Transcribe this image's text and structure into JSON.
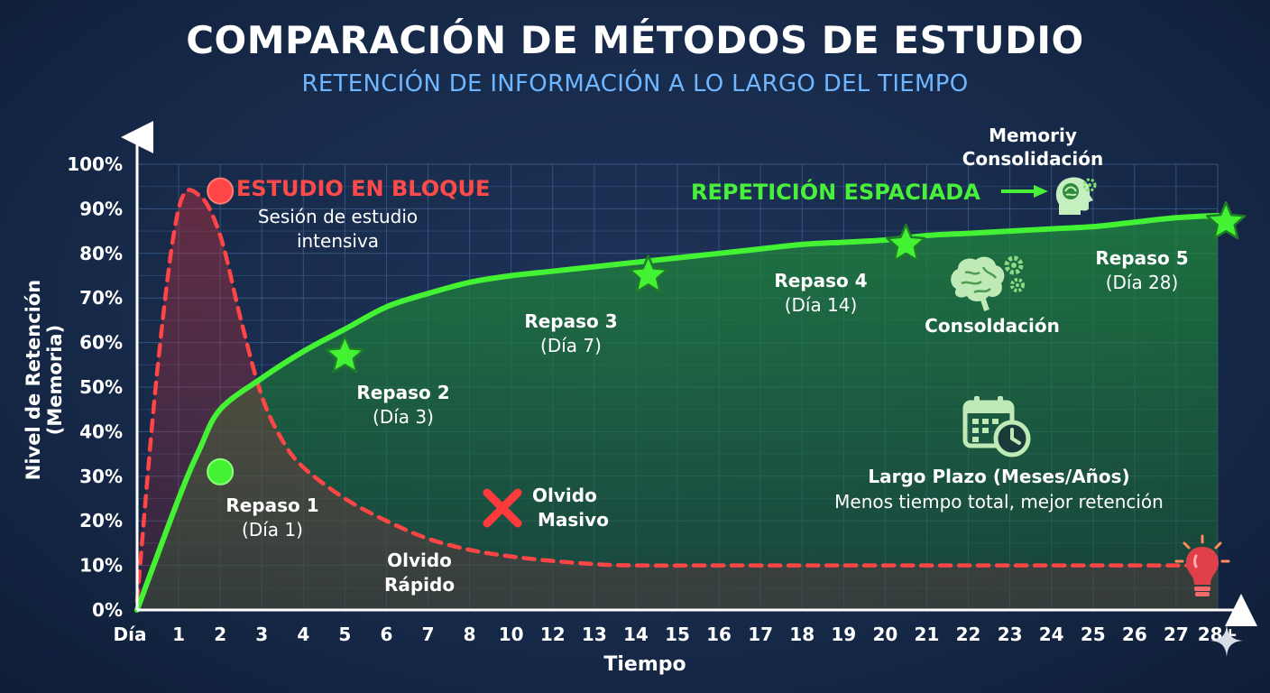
{
  "title": "COMPARACIÓN DE MÉTODOS DE ESTUDIO",
  "subtitle": "RETENCIÓN DE INFORMACIÓN A LO LARGO DEL TIEMPO",
  "chart_data": {
    "type": "line",
    "xlabel": "Tiempo",
    "ylabel": "Nivel de Retención (Memoria)",
    "x_ticks": [
      "Día",
      "1",
      "2",
      "3",
      "4",
      "5",
      "6",
      "7",
      "8",
      "10",
      "12",
      "13",
      "14",
      "15",
      "16",
      "17",
      "18",
      "19",
      "20",
      "21",
      "22",
      "23",
      "24",
      "25",
      "26",
      "27",
      "28+"
    ],
    "y_ticks": [
      "0%",
      "10%",
      "20%",
      "30%",
      "40%",
      "50%",
      "60%",
      "70%",
      "80%",
      "90%",
      "100%"
    ],
    "ylim": [
      0,
      100
    ],
    "grid": true,
    "colors": {
      "bloque": "#ff4545",
      "espaciada": "#44f234"
    },
    "series": [
      {
        "name": "ESTUDIO EN BLOQUE",
        "style": "dashed",
        "points": [
          [
            0,
            2
          ],
          [
            0.5,
            55
          ],
          [
            1,
            90
          ],
          [
            1.5,
            93
          ],
          [
            2,
            84
          ],
          [
            2.5,
            65
          ],
          [
            3,
            48
          ],
          [
            3.5,
            38
          ],
          [
            4,
            32
          ],
          [
            5,
            25
          ],
          [
            6,
            20
          ],
          [
            7,
            16
          ],
          [
            8,
            13.5
          ],
          [
            9,
            12
          ],
          [
            10,
            11
          ],
          [
            11,
            10.3
          ],
          [
            12,
            10
          ],
          [
            15,
            10
          ],
          [
            20,
            10
          ],
          [
            26,
            10
          ]
        ]
      },
      {
        "name": "REPETICIÓN ESPACIADA",
        "style": "solid",
        "points": [
          [
            0,
            0
          ],
          [
            1,
            25
          ],
          [
            1.5,
            36
          ],
          [
            2,
            45
          ],
          [
            3,
            52
          ],
          [
            4,
            58
          ],
          [
            5,
            63
          ],
          [
            6,
            68
          ],
          [
            7,
            71
          ],
          [
            8,
            73.5
          ],
          [
            9,
            75
          ],
          [
            10,
            76
          ],
          [
            11,
            77
          ],
          [
            12,
            78
          ],
          [
            13,
            79
          ],
          [
            14,
            80
          ],
          [
            15,
            81
          ],
          [
            16,
            82
          ],
          [
            17,
            82.5
          ],
          [
            18,
            83
          ],
          [
            19,
            84
          ],
          [
            20,
            84.5
          ],
          [
            21,
            85
          ],
          [
            22,
            85.5
          ],
          [
            23,
            86
          ],
          [
            24,
            87
          ],
          [
            25,
            88
          ],
          [
            26,
            88.5
          ]
        ]
      }
    ],
    "markers": [
      {
        "series": "ESTUDIO EN BLOQUE",
        "x": 2,
        "y": 94,
        "shape": "circle"
      },
      {
        "series": "REPETICIÓN ESPACIADA",
        "x": 2,
        "y": 31,
        "shape": "circle",
        "label": "Repaso 1",
        "sublabel": "(Día 1)"
      },
      {
        "series": "REPETICIÓN ESPACIADA",
        "x": 5,
        "y": 57,
        "shape": "star",
        "label": "Repaso 2",
        "sublabel": "(Día 3)"
      },
      {
        "series": "REPETICIÓN ESPACIADA",
        "x": 12.3,
        "y": 75,
        "shape": "star",
        "label": "Repaso 3",
        "sublabel": "(Día 7)"
      },
      {
        "series": "REPETICIÓN ESPACIADA",
        "x": 18.5,
        "y": 82,
        "shape": "star",
        "label": "Repaso 4",
        "sublabel": "(Día 14)"
      },
      {
        "series": "REPETICIÓN ESPACIADA",
        "x": 26.2,
        "y": 87,
        "shape": "star",
        "label": "Repaso 5",
        "sublabel": "(Día 28)"
      }
    ]
  },
  "annotations": {
    "bloque_title": "ESTUDIO EN BLOQUE",
    "bloque_desc_1": "Sesión de estudio",
    "bloque_desc_2": "intensiva",
    "espaciada_title": "REPETICIÓN ESPACIADA",
    "memory_1": "Memoriy",
    "memory_2": "Consolidación",
    "consolidacion": "Consoldación",
    "largo_plazo": "Largo Plazo (Meses/Años)",
    "largo_desc": "Menos tiempo total, mejor retención",
    "olvido_masivo_1": "Olvido",
    "olvido_masivo_2": "Masivo",
    "olvido_rapido_1": "Olvido",
    "olvido_rapido_2": "Rápido"
  },
  "icons": [
    "x-icon",
    "brain-gears-icon",
    "head-brain-icon",
    "calendar-clock-icon",
    "lightbulb-icon",
    "sparkle-icon",
    "arrow-right-icon"
  ]
}
